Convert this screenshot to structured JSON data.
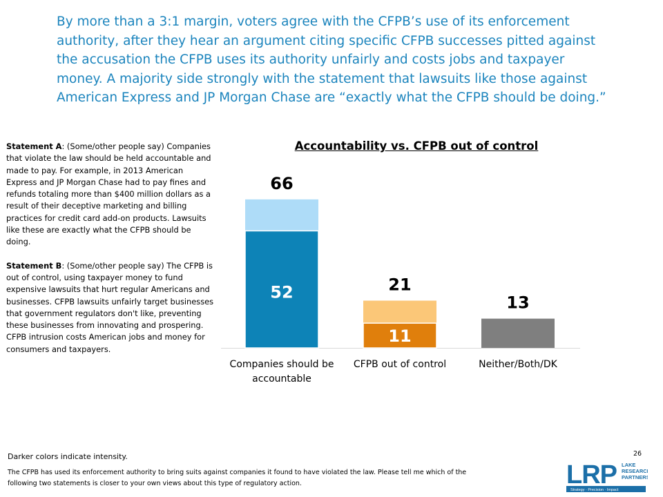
{
  "headline": "By more than a 3:1 margin, voters agree with the CFPB’s use of its enforcement authority, after they hear an argument citing specific CFPB successes pitted against the accusation the CFPB uses its authority unfairly and costs jobs and taxpayer money. A majority side strongly with the statement that lawsuits like those against American Express and JP Morgan Chase are “exactly what the CFPB should be doing.”",
  "statement_a": {
    "label": "Statement A",
    "text": ": (Some/other people say) Companies that violate the law should be held accountable and made to pay. For example, in 2013 American Express and JP Morgan Chase had to pay fines and refunds totaling more than $400 million dollars as a result of their deceptive marketing and billing practices for credit card add-on products. Lawsuits like these are exactly what the CFPB should be doing."
  },
  "statement_b": {
    "label": "Statement B",
    "text": ": (Some/other people say) The CFPB is out of control, using taxpayer money to fund expensive lawsuits that hurt regular Americans and businesses.  CFPB lawsuits unfairly target businesses that government regulators don't like, preventing these businesses from innovating and prospering.  CFPB intrusion costs American jobs and money for consumers and taxpayers."
  },
  "footnote": "Darker colors indicate intensity.",
  "question": "The CFPB has used its enforcement authority to bring suits against companies it found to have violated the law. Please tell me which of the following two statements  is closer to your own views about this type of regulatory action.",
  "page_number": "26",
  "logo": {
    "letters": "LRP",
    "name_lines": [
      "LAKE",
      "RESEARCH",
      "PARTNERS"
    ],
    "tagline": "Strategy · Precision · Impact",
    "color": "#1b6fa8"
  },
  "chart_data": {
    "type": "bar",
    "title": "Accountability vs. CFPB out of control",
    "categories": [
      [
        "Companies should be",
        "accountable"
      ],
      [
        "CFPB out of control"
      ],
      [
        "Neither/Both/DK"
      ]
    ],
    "totals": [
      66,
      21,
      13
    ],
    "intense": [
      52,
      11,
      null
    ],
    "ylim": [
      0,
      70
    ],
    "colors": {
      "strong": [
        "#0d83b7",
        "#e07f0c",
        "#7f7f7f"
      ],
      "light": [
        "#aedcf8",
        "#fbc778",
        "#7f7f7f"
      ]
    }
  }
}
